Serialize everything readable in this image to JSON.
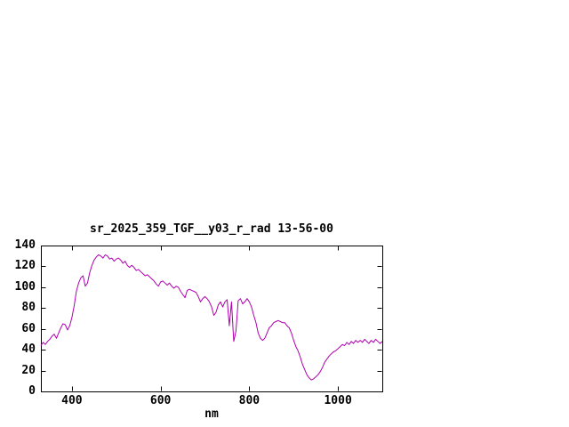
{
  "page": {
    "background": "#ffffff"
  },
  "chart_data": {
    "type": "line",
    "title": "sr_2025_359_TGF__y03_r_rad 13-56-00",
    "xlabel": "nm",
    "ylabel": "",
    "xlim": [
      330,
      1100
    ],
    "ylim": [
      0,
      140
    ],
    "x_ticks": [
      400,
      600,
      800,
      1000
    ],
    "y_ticks": [
      0,
      20,
      40,
      60,
      80,
      100,
      120,
      140
    ],
    "grid": false,
    "legend": "none",
    "line_color": "#b000b0",
    "axis_color": "#000000",
    "series": [
      {
        "name": "sr_2025_359_TGF__y03_r_rad",
        "x_start": 330,
        "x_step": 5,
        "y": [
          44,
          47,
          45,
          48,
          50,
          53,
          55,
          51,
          56,
          61,
          65,
          64,
          59,
          63,
          71,
          82,
          96,
          104,
          109,
          111,
          101,
          104,
          114,
          121,
          126,
          129,
          131,
          130,
          128,
          131,
          130,
          127,
          128,
          125,
          127,
          128,
          126,
          123,
          125,
          121,
          119,
          121,
          119,
          116,
          117,
          115,
          113,
          111,
          112,
          110,
          108,
          106,
          103,
          101,
          105,
          106,
          104,
          102,
          104,
          101,
          99,
          101,
          100,
          96,
          93,
          90,
          97,
          98,
          97,
          96,
          95,
          91,
          86,
          89,
          91,
          89,
          86,
          81,
          73,
          76,
          83,
          86,
          81,
          86,
          88,
          63,
          86,
          48,
          58,
          87,
          89,
          84,
          86,
          89,
          86,
          81,
          73,
          66,
          56,
          51,
          49,
          51,
          56,
          61,
          63,
          66,
          67,
          68,
          67,
          66,
          66,
          63,
          61,
          56,
          49,
          43,
          39,
          33,
          26,
          21,
          16,
          13,
          11,
          12,
          14,
          16,
          19,
          23,
          28,
          31,
          34,
          36,
          38,
          39,
          41,
          43,
          45,
          44,
          47,
          45,
          48,
          46,
          49,
          47,
          49,
          47,
          50,
          48,
          46,
          49,
          47,
          50,
          48,
          46,
          48
        ]
      }
    ]
  }
}
